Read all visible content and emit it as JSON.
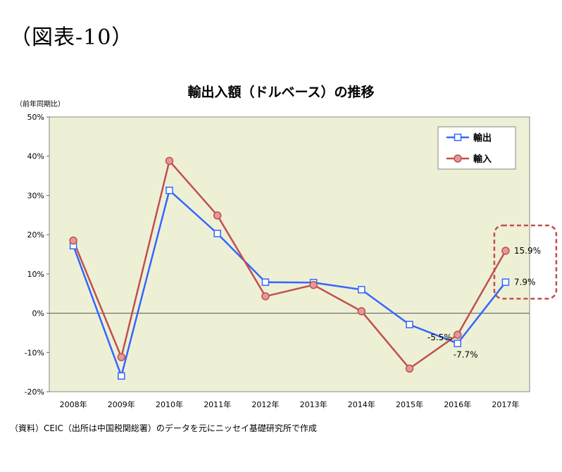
{
  "figure_label": "（図表-10）",
  "source_note": "（資料）CEIC（出所は中国税関総署）のデータを元にニッセイ基礎研究所で作成",
  "colors": {
    "plot_bg": "#eef0d6",
    "export": "#3366ff",
    "import": "#c0504d",
    "highlight": "#c0504d"
  },
  "chart_data": {
    "type": "line",
    "title": "輸出入額（ドルベース）の推移",
    "ylabel": "（前年同期比）",
    "xlabel": "",
    "ylim": [
      -20,
      50
    ],
    "yticks": [
      50,
      40,
      30,
      20,
      10,
      0,
      -10,
      -20
    ],
    "ytick_labels": [
      "50%",
      "40%",
      "30%",
      "20%",
      "10%",
      "0%",
      "-10%",
      "-20%"
    ],
    "categories": [
      "2008年",
      "2009年",
      "2010年",
      "2011年",
      "2012年",
      "2013年",
      "2014年",
      "2015年",
      "2016年",
      "2017年"
    ],
    "legend_position": "top-right",
    "series": [
      {
        "name": "輸出",
        "marker": "square",
        "values": [
          17.2,
          -16.0,
          31.3,
          20.3,
          7.9,
          7.8,
          6.0,
          -2.9,
          -7.7,
          7.9
        ]
      },
      {
        "name": "輸入",
        "marker": "circle",
        "values": [
          18.5,
          -11.2,
          38.8,
          24.9,
          4.3,
          7.2,
          0.5,
          -14.1,
          -5.5,
          15.9
        ]
      }
    ],
    "annotations": [
      {
        "text": "15.9%",
        "series": 1,
        "index": 9
      },
      {
        "text": "7.9%",
        "series": 0,
        "index": 9
      },
      {
        "text": "-5.5%",
        "series": 1,
        "index": 8
      },
      {
        "text": "-7.7%",
        "series": 0,
        "index": 8
      }
    ]
  }
}
